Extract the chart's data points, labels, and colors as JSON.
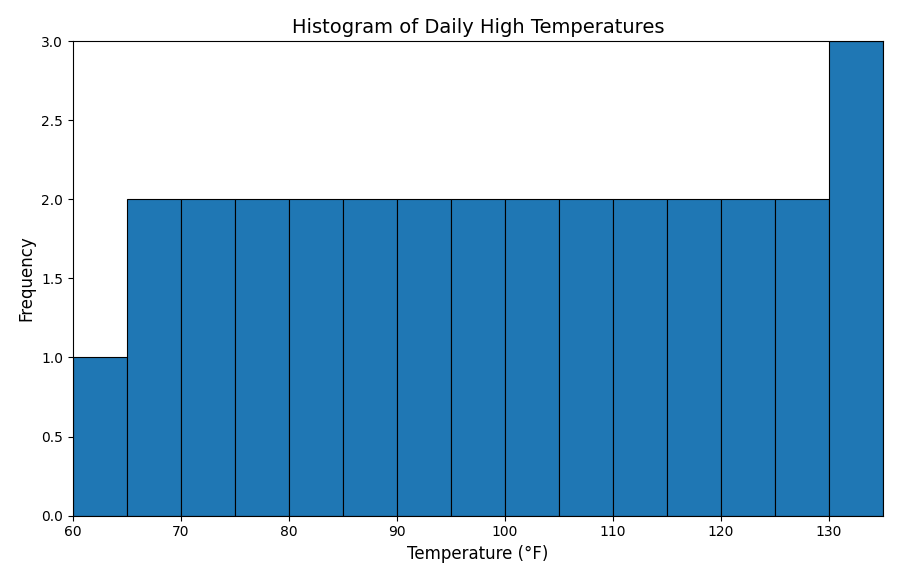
{
  "title": "Histogram of Daily High Temperatures",
  "xlabel": "Temperature (°F)",
  "ylabel": "Frequency",
  "bar_color": "#1f77b4",
  "edge_color": "black",
  "bin_edges": [
    60,
    65,
    70,
    75,
    80,
    85,
    90,
    95,
    100,
    105,
    110,
    115,
    120,
    125,
    130,
    135
  ],
  "frequencies": [
    1,
    2,
    2,
    2,
    2,
    2,
    2,
    2,
    2,
    2,
    2,
    2,
    2,
    2,
    3
  ],
  "xlim": [
    60,
    135
  ],
  "ylim": [
    0,
    3.0
  ],
  "yticks": [
    0.0,
    0.5,
    1.0,
    1.5,
    2.0,
    2.5,
    3.0
  ],
  "xticks": [
    60,
    70,
    80,
    90,
    100,
    110,
    120,
    130
  ],
  "title_fontsize": 14,
  "label_fontsize": 12,
  "figsize": [
    9.1,
    5.86
  ],
  "dpi": 100
}
